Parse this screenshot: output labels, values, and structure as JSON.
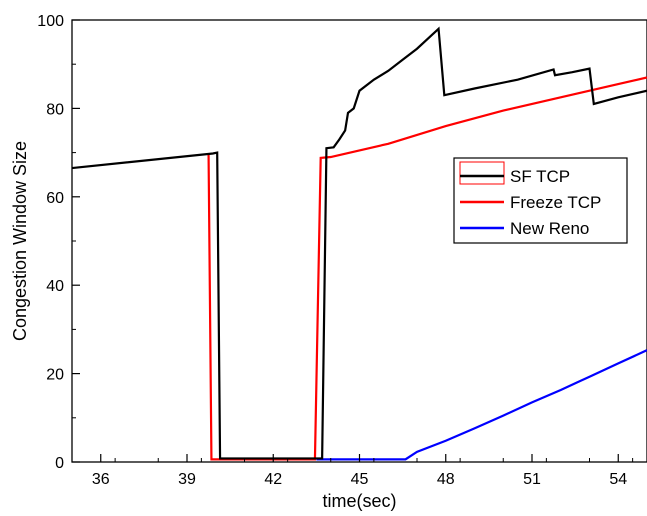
{
  "chart_data": {
    "type": "line",
    "title": "",
    "xlabel": "time(sec)",
    "ylabel": "Congestion Window Size",
    "xlim": [
      35,
      55
    ],
    "ylim": [
      0,
      100
    ],
    "x_ticks": [
      36,
      39,
      42,
      45,
      48,
      51,
      54
    ],
    "y_ticks": [
      0,
      20,
      40,
      60,
      80,
      100
    ],
    "x_tick_labels": [
      "36",
      "39",
      "42",
      "45",
      "48",
      "51",
      "54"
    ],
    "y_tick_labels": [
      "0",
      "20",
      "40",
      "60",
      "80",
      "100"
    ],
    "grid": false,
    "legend_position": "right",
    "series": [
      {
        "name": "SF TCP",
        "color": "#000000",
        "points": [
          [
            35.0,
            66.5
          ],
          [
            39.9,
            69.8
          ],
          [
            40.05,
            70.0
          ],
          [
            40.15,
            0.8
          ],
          [
            43.7,
            0.8
          ],
          [
            43.85,
            71.0
          ],
          [
            44.1,
            71.2
          ],
          [
            44.3,
            73.0
          ],
          [
            44.5,
            75.0
          ],
          [
            44.6,
            79.0
          ],
          [
            44.8,
            80.0
          ],
          [
            45.0,
            84.0
          ],
          [
            45.5,
            86.5
          ],
          [
            46.0,
            88.5
          ],
          [
            46.5,
            91.0
          ],
          [
            47.0,
            93.5
          ],
          [
            47.5,
            96.5
          ],
          [
            47.75,
            98.0
          ],
          [
            47.95,
            83.0
          ],
          [
            49.0,
            84.5
          ],
          [
            50.5,
            86.5
          ],
          [
            51.75,
            88.8
          ],
          [
            51.8,
            87.5
          ],
          [
            52.4,
            88.2
          ],
          [
            53.0,
            89.0
          ],
          [
            53.15,
            81.0
          ],
          [
            54.0,
            82.5
          ],
          [
            55.0,
            84.0
          ]
        ]
      },
      {
        "name": "Freeze TCP",
        "color": "#ff0000",
        "points": [
          [
            39.75,
            69.8
          ],
          [
            39.85,
            0.6
          ],
          [
            43.45,
            0.6
          ],
          [
            43.65,
            68.8
          ],
          [
            44.0,
            69.0
          ],
          [
            46.0,
            72.0
          ],
          [
            48.0,
            76.0
          ],
          [
            50.0,
            79.5
          ],
          [
            52.0,
            82.5
          ],
          [
            54.0,
            85.5
          ],
          [
            55.0,
            87.0
          ]
        ]
      },
      {
        "name": "New Reno",
        "color": "#0000ff",
        "points": [
          [
            43.5,
            0.6
          ],
          [
            46.6,
            0.6
          ],
          [
            47.0,
            2.3
          ],
          [
            48.0,
            4.8
          ],
          [
            49.0,
            7.6
          ],
          [
            50.0,
            10.5
          ],
          [
            51.0,
            13.5
          ],
          [
            52.0,
            16.3
          ],
          [
            53.0,
            19.3
          ],
          [
            54.0,
            22.3
          ],
          [
            55.0,
            25.3
          ]
        ]
      }
    ]
  }
}
